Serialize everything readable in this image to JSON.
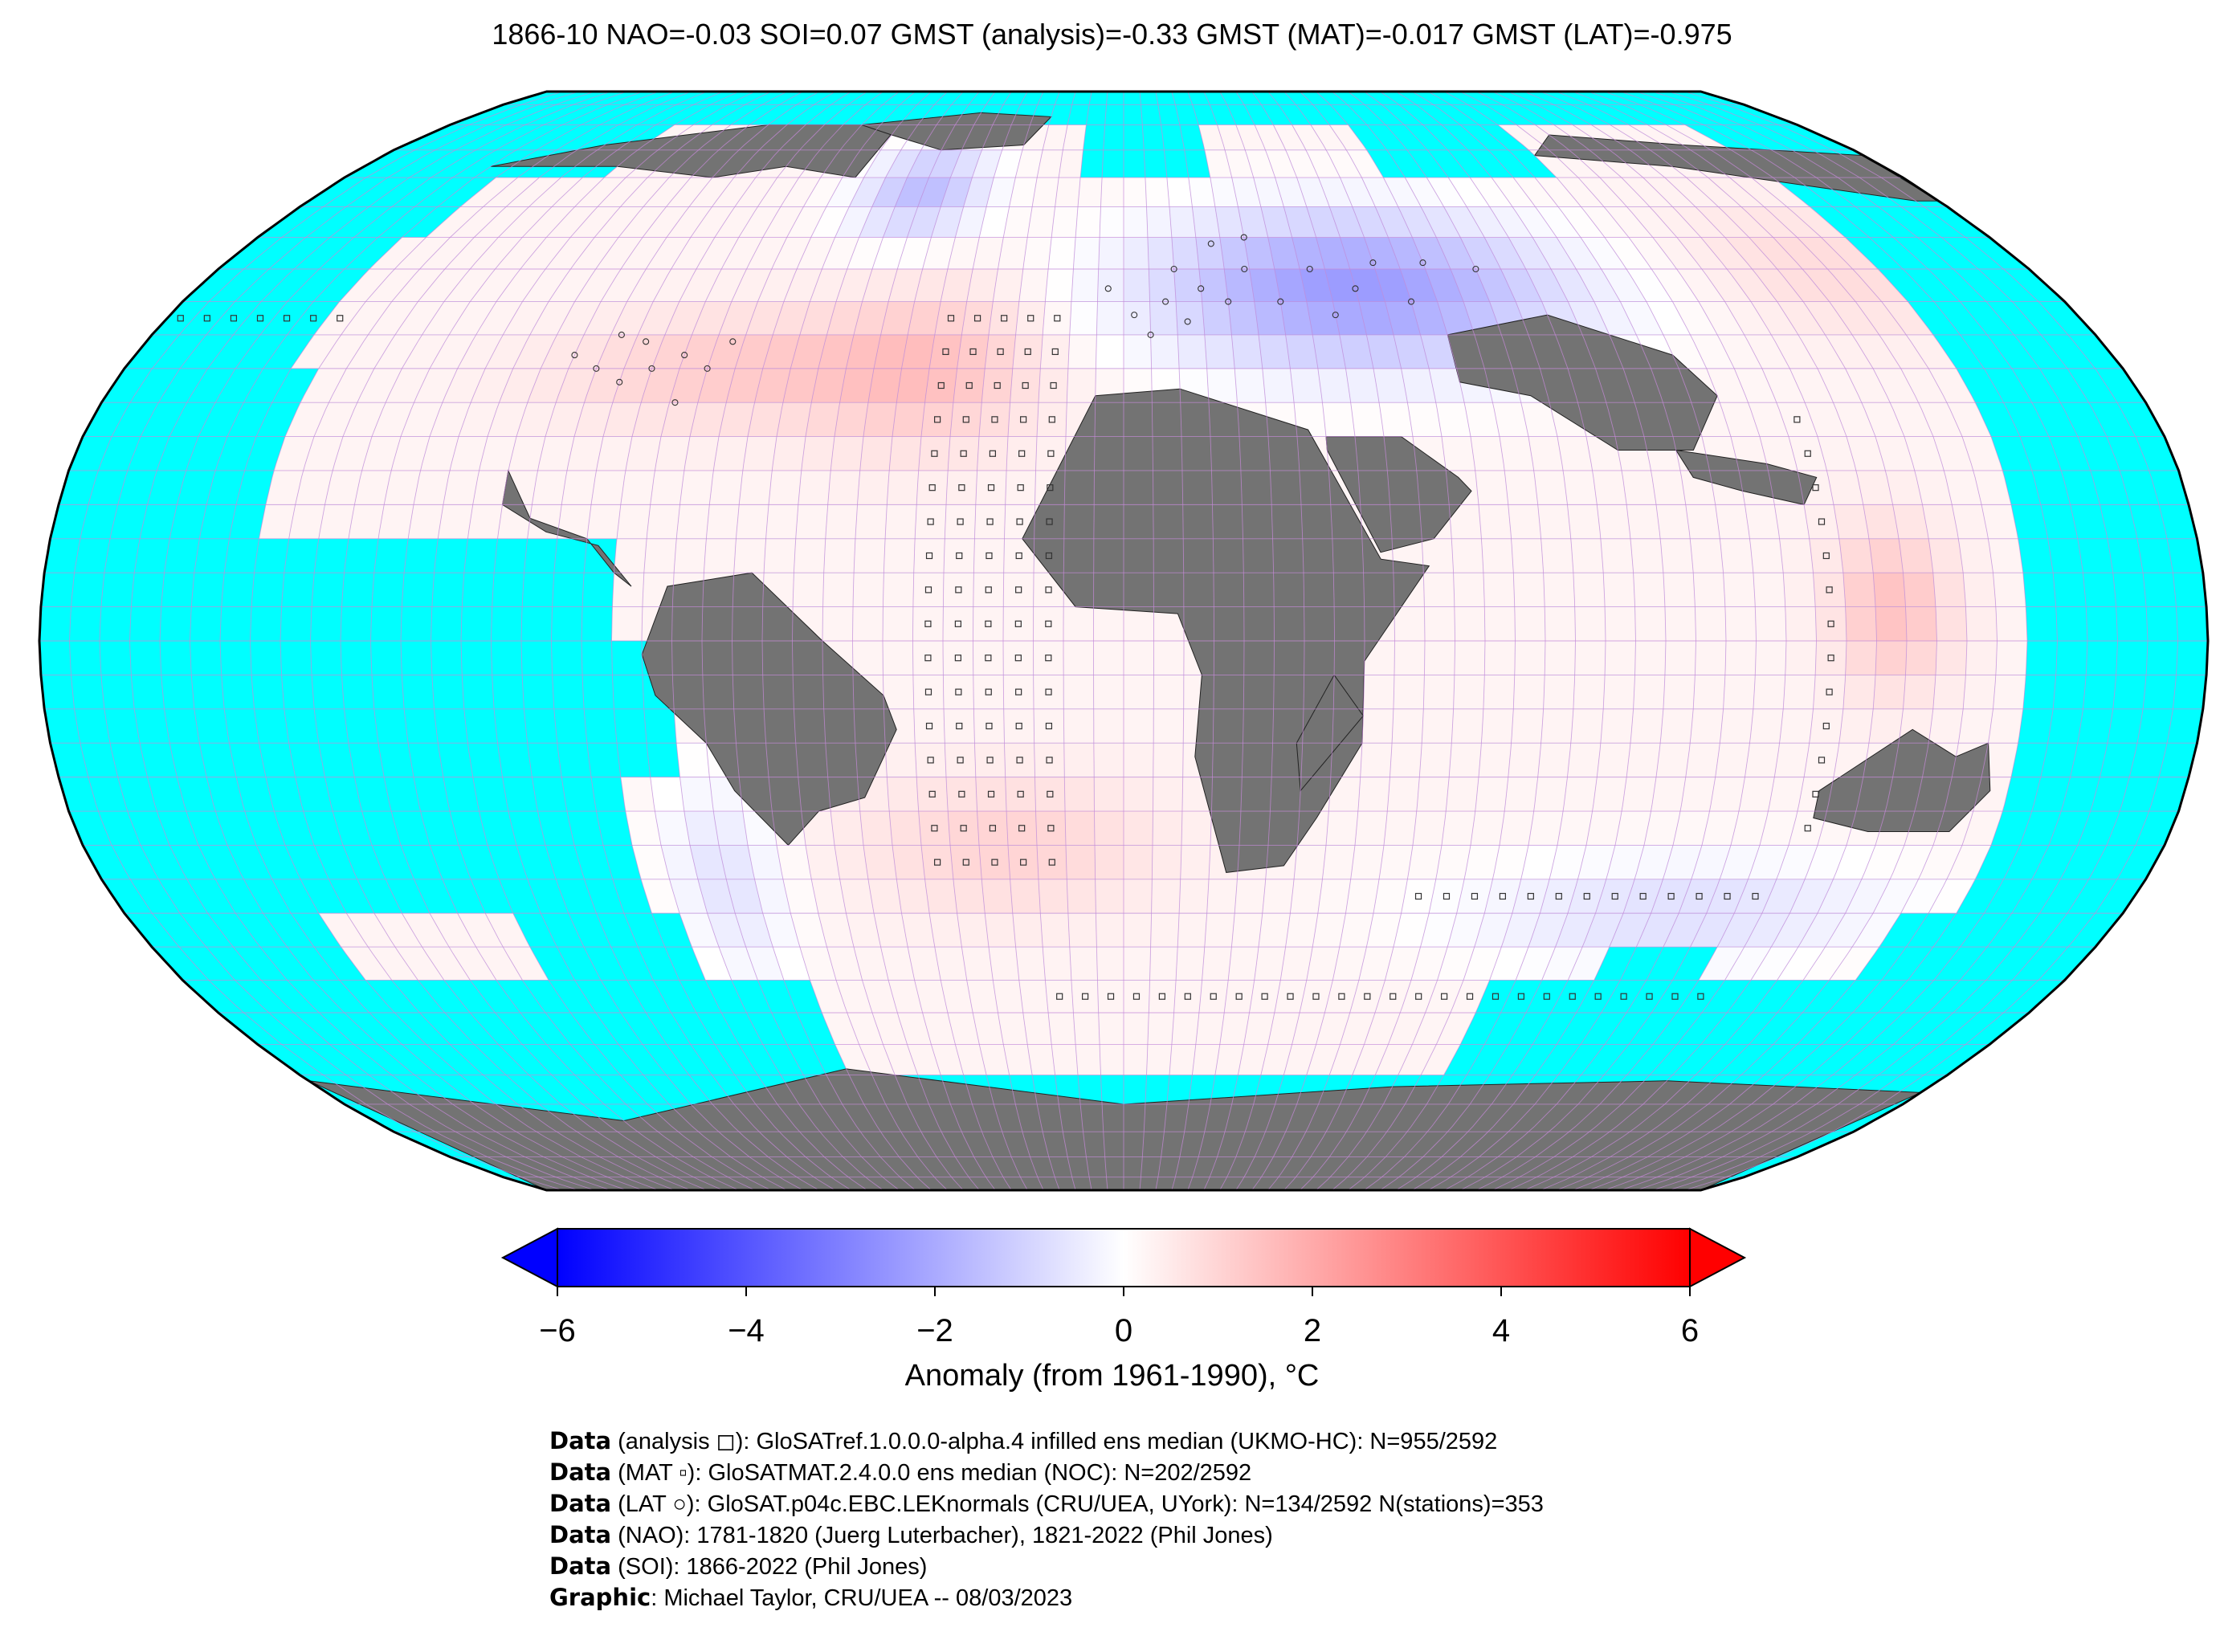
{
  "title": "1866-10 NAO=-0.03 SOI=0.07 GMST (analysis)=-0.33 GMST (MAT)=-0.017 GMST (LAT)=-0.975",
  "colors": {
    "ocean_no_data": "#00ffff",
    "land_no_data": "#737373",
    "grid": "#c58ad8",
    "cold": "#0000ff",
    "neutral": "#ffffff",
    "warm": "#ff0000"
  },
  "colorbar": {
    "label": "Anomaly (from 1961-1990), °C",
    "ticks": [
      "−6",
      "−4",
      "−2",
      "0",
      "2",
      "4",
      "6"
    ],
    "range": [
      -6,
      6
    ]
  },
  "credits": [
    {
      "bold": "Data",
      "text": " (analysis ◻): GloSATref.1.0.0.0-alpha.4 infilled ens median (UKMO-HC): N=955/2592"
    },
    {
      "bold": "Data",
      "text": " (MAT ▫): GloSATMAT.2.4.0.0 ens median (NOC): N=202/2592"
    },
    {
      "bold": "Data",
      "text": " (LAT ○): GloSAT.p04c.EBC.LEKnormals (CRU/UEA, UYork): N=134/2592 N(stations)=353"
    },
    {
      "bold": "Data",
      "text": " (NAO): 1781-1820 (Juerg Luterbacher), 1821-2022 (Phil Jones)"
    },
    {
      "bold": "Data",
      "text": " (SOI): 1866-2022 (Phil Jones)"
    },
    {
      "bold": "Graphic",
      "text": ": Michael Taylor, CRU/UEA -- 08/03/2023"
    }
  ]
}
